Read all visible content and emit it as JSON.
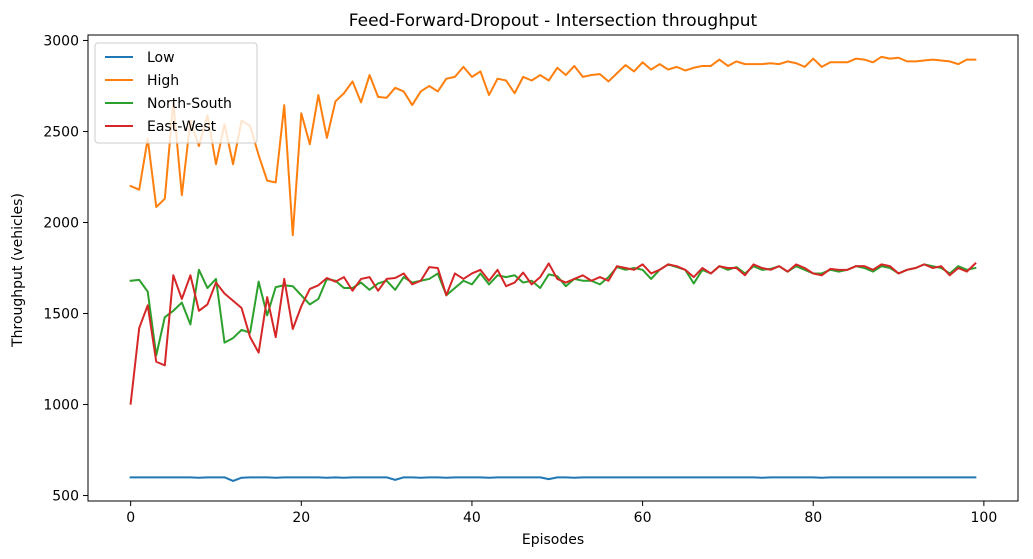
{
  "chart_data": {
    "type": "line",
    "title": "Feed-Forward-Dropout - Intersection throughput",
    "xlabel": "Episodes",
    "ylabel": "Throughput (vehicles)",
    "xlim": [
      -5,
      104
    ],
    "ylim": [
      470,
      3030
    ],
    "xticks": [
      0,
      20,
      40,
      60,
      80,
      100
    ],
    "yticks": [
      500,
      1000,
      1500,
      2000,
      2500,
      3000
    ],
    "grid": false,
    "legend_position": "upper-left",
    "series": [
      {
        "name": "Low",
        "color": "#1f77b4",
        "values": [
          600,
          600,
          600,
          600,
          600,
          600,
          600,
          600,
          598,
          600,
          600,
          600,
          580,
          598,
          600,
          600,
          600,
          598,
          600,
          600,
          600,
          600,
          600,
          598,
          600,
          598,
          600,
          600,
          600,
          600,
          600,
          586,
          600,
          600,
          598,
          600,
          600,
          598,
          600,
          600,
          600,
          600,
          598,
          600,
          600,
          600,
          600,
          600,
          600,
          590,
          600,
          600,
          598,
          600,
          600,
          600,
          600,
          600,
          600,
          600,
          600,
          600,
          600,
          600,
          600,
          600,
          600,
          600,
          600,
          600,
          600,
          600,
          600,
          600,
          598,
          600,
          600,
          600,
          600,
          600,
          600,
          598,
          600,
          600,
          600,
          600,
          600,
          600,
          600,
          600,
          600,
          600,
          600,
          600,
          600,
          600,
          600,
          600,
          600,
          600
        ]
      },
      {
        "name": "High",
        "color": "#ff7f0e",
        "values": [
          2200,
          2180,
          2460,
          2085,
          2130,
          2660,
          2150,
          2560,
          2420,
          2590,
          2320,
          2540,
          2320,
          2560,
          2530,
          2370,
          2230,
          2220,
          2645,
          1930,
          2600,
          2430,
          2700,
          2465,
          2665,
          2710,
          2775,
          2660,
          2810,
          2690,
          2685,
          2740,
          2720,
          2645,
          2720,
          2750,
          2720,
          2790,
          2800,
          2855,
          2800,
          2830,
          2700,
          2790,
          2780,
          2710,
          2800,
          2780,
          2810,
          2780,
          2850,
          2810,
          2860,
          2800,
          2810,
          2815,
          2775,
          2820,
          2865,
          2830,
          2880,
          2840,
          2870,
          2840,
          2855,
          2835,
          2850,
          2860,
          2860,
          2895,
          2860,
          2885,
          2870,
          2870,
          2870,
          2875,
          2870,
          2885,
          2875,
          2855,
          2900,
          2855,
          2880,
          2880,
          2880,
          2900,
          2895,
          2880,
          2910,
          2900,
          2905,
          2885,
          2885,
          2890,
          2895,
          2890,
          2885,
          2870,
          2895,
          2895
        ]
      },
      {
        "name": "North-South",
        "color": "#2ca02c",
        "values": [
          1680,
          1685,
          1620,
          1270,
          1480,
          1515,
          1560,
          1440,
          1740,
          1640,
          1690,
          1340,
          1365,
          1410,
          1395,
          1675,
          1490,
          1645,
          1655,
          1650,
          1600,
          1550,
          1580,
          1690,
          1680,
          1640,
          1640,
          1670,
          1630,
          1665,
          1680,
          1630,
          1700,
          1670,
          1680,
          1690,
          1720,
          1600,
          1640,
          1680,
          1660,
          1720,
          1660,
          1710,
          1700,
          1710,
          1670,
          1680,
          1640,
          1715,
          1705,
          1650,
          1690,
          1680,
          1680,
          1660,
          1700,
          1755,
          1740,
          1750,
          1740,
          1690,
          1740,
          1770,
          1755,
          1740,
          1665,
          1740,
          1720,
          1760,
          1740,
          1755,
          1720,
          1760,
          1740,
          1745,
          1760,
          1730,
          1760,
          1740,
          1720,
          1720,
          1740,
          1730,
          1740,
          1760,
          1750,
          1730,
          1760,
          1750,
          1720,
          1740,
          1750,
          1770,
          1760,
          1750,
          1720,
          1760,
          1740,
          1750
        ]
      },
      {
        "name": "East-West",
        "color": "#d62728",
        "values": [
          1005,
          1420,
          1545,
          1235,
          1215,
          1710,
          1580,
          1710,
          1515,
          1550,
          1670,
          1610,
          1570,
          1530,
          1370,
          1285,
          1590,
          1370,
          1690,
          1415,
          1540,
          1635,
          1655,
          1695,
          1675,
          1700,
          1625,
          1690,
          1700,
          1625,
          1690,
          1695,
          1720,
          1660,
          1680,
          1755,
          1750,
          1600,
          1720,
          1690,
          1720,
          1740,
          1680,
          1740,
          1650,
          1670,
          1725,
          1660,
          1700,
          1775,
          1690,
          1670,
          1690,
          1710,
          1680,
          1700,
          1680,
          1760,
          1750,
          1740,
          1770,
          1720,
          1740,
          1770,
          1760,
          1740,
          1700,
          1750,
          1720,
          1760,
          1750,
          1750,
          1710,
          1770,
          1750,
          1740,
          1760,
          1730,
          1770,
          1750,
          1720,
          1710,
          1745,
          1740,
          1740,
          1760,
          1760,
          1740,
          1770,
          1760,
          1720,
          1740,
          1750,
          1770,
          1750,
          1760,
          1710,
          1750,
          1730,
          1775
        ]
      }
    ]
  }
}
